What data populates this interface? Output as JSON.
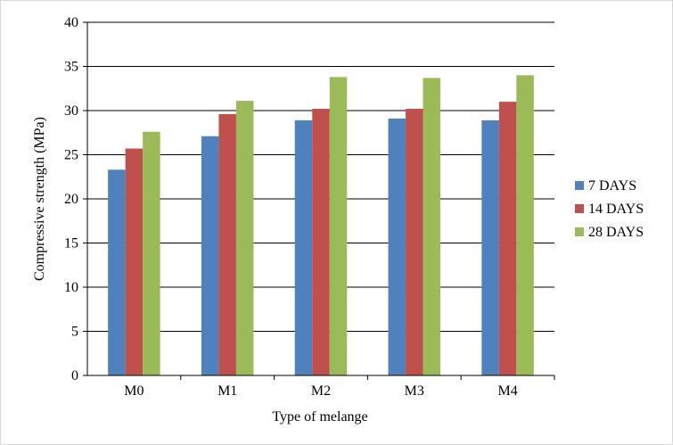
{
  "chart_data": {
    "type": "bar",
    "title": "",
    "xlabel": "Type of melange",
    "ylabel": "Compressive strength (MPa)",
    "categories": [
      "M0",
      "M1",
      "M2",
      "M3",
      "M4"
    ],
    "series": [
      {
        "name": "7 DAYS",
        "color": "#4f81bd",
        "values": [
          23.3,
          27.1,
          28.9,
          29.1,
          28.9
        ]
      },
      {
        "name": "14 DAYS",
        "color": "#c0504d",
        "values": [
          25.7,
          29.6,
          30.2,
          30.2,
          31.0
        ]
      },
      {
        "name": "28 DAYS",
        "color": "#9bbb59",
        "values": [
          27.6,
          31.1,
          33.8,
          33.7,
          34.0
        ]
      }
    ],
    "ylim": [
      0,
      40
    ],
    "yticks": [
      "0",
      "5",
      "10",
      "15",
      "20",
      "25",
      "30",
      "35",
      "40"
    ],
    "grid": true,
    "legend_position": "right"
  }
}
